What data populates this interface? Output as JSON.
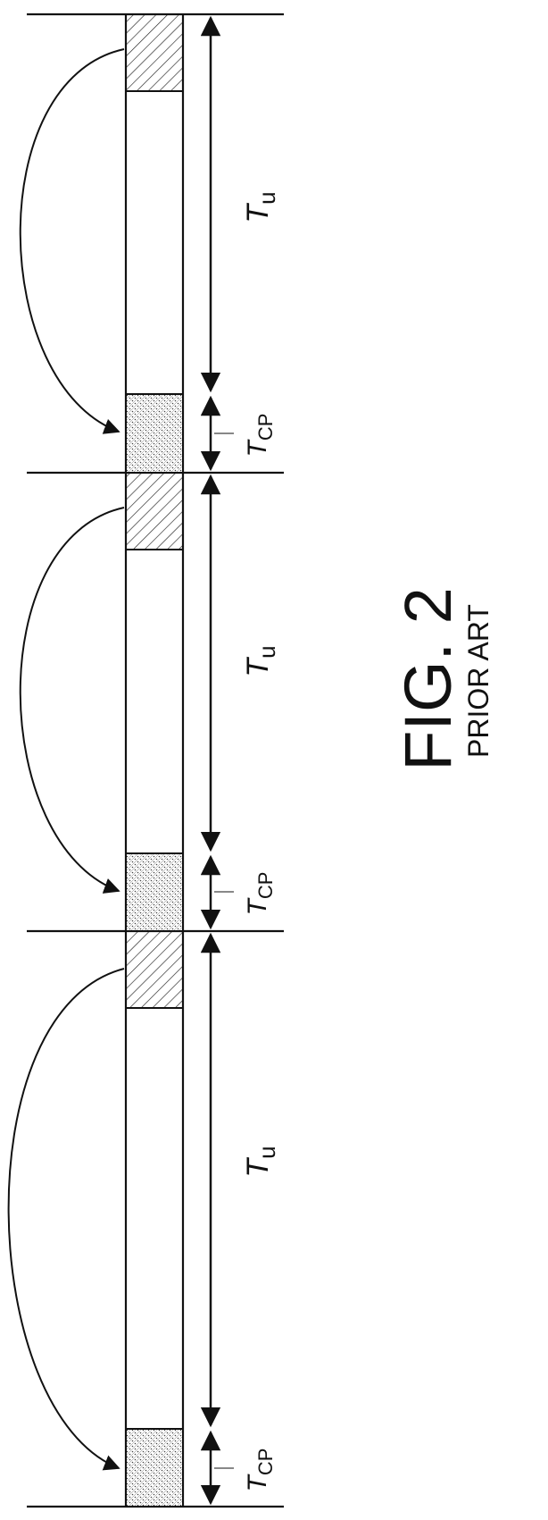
{
  "figure": {
    "title": "FIG. 2",
    "subtitle": "PRIOR ART"
  },
  "symbols": [
    {
      "base": "T",
      "sub": "u"
    },
    {
      "base": "T",
      "sub": "CP"
    },
    {
      "base": "T",
      "sub": "u"
    },
    {
      "base": "T",
      "sub": "CP"
    },
    {
      "base": "T",
      "sub": "u"
    },
    {
      "base": "T",
      "sub": "CP"
    }
  ],
  "colors": {
    "ink": "#111111",
    "paper": "#ffffff"
  }
}
